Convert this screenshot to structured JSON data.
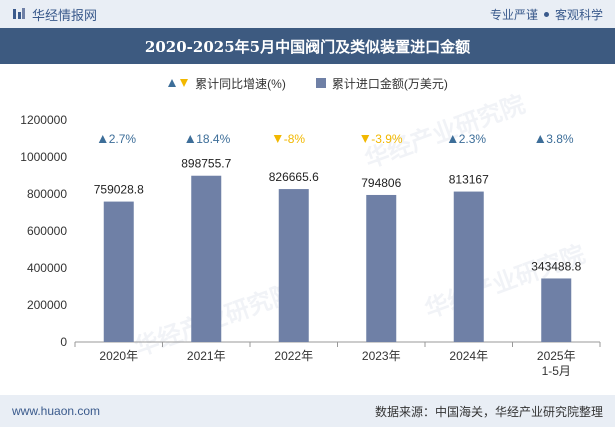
{
  "header": {
    "brand": "华经情报网",
    "slogan_left": "专业严谨",
    "slogan_right": "客观科学"
  },
  "title": "2020-2025年5月中国阀门及类似装置进口金额",
  "legend": {
    "growth": "累计同比增速(%)",
    "amount": "累计进口金额(万美元)"
  },
  "watermark": "华经产业研究院",
  "footer": {
    "url": "www.huaon.com",
    "source": "数据来源：中国海关，华经产业研究院整理"
  },
  "colors": {
    "bar": "#6f80a6",
    "up": "#3d6e99",
    "down": "#f2b800",
    "title_bg": "#3d5a80"
  },
  "chart_data": {
    "type": "bar",
    "categories": [
      "2020年",
      "2021年",
      "2022年",
      "2023年",
      "2024年",
      "2025年\n1-5月"
    ],
    "series": [
      {
        "name": "累计进口金额(万美元)",
        "values": [
          759028.8,
          898755.7,
          826665.6,
          794806,
          813167,
          343488.8
        ]
      }
    ],
    "value_labels": [
      "759028.8",
      "898755.7",
      "826665.6",
      "794806",
      "813167",
      "343488.8"
    ],
    "growth": {
      "name": "累计同比增速(%)",
      "values": [
        2.7,
        18.4,
        -8,
        -3.9,
        2.3,
        3.8
      ],
      "labels": [
        "2.7%",
        "18.4%",
        "-8%",
        "-3.9%",
        "2.3%",
        "3.8%"
      ]
    },
    "ylim": [
      0,
      1200000
    ],
    "yticks": [
      0,
      200000,
      400000,
      600000,
      800000,
      1000000,
      1200000
    ],
    "ytick_labels": [
      "0",
      "200000",
      "400000",
      "600000",
      "800000",
      "1000000",
      "1200000"
    ],
    "legend_position": "top-center",
    "grid": false
  }
}
